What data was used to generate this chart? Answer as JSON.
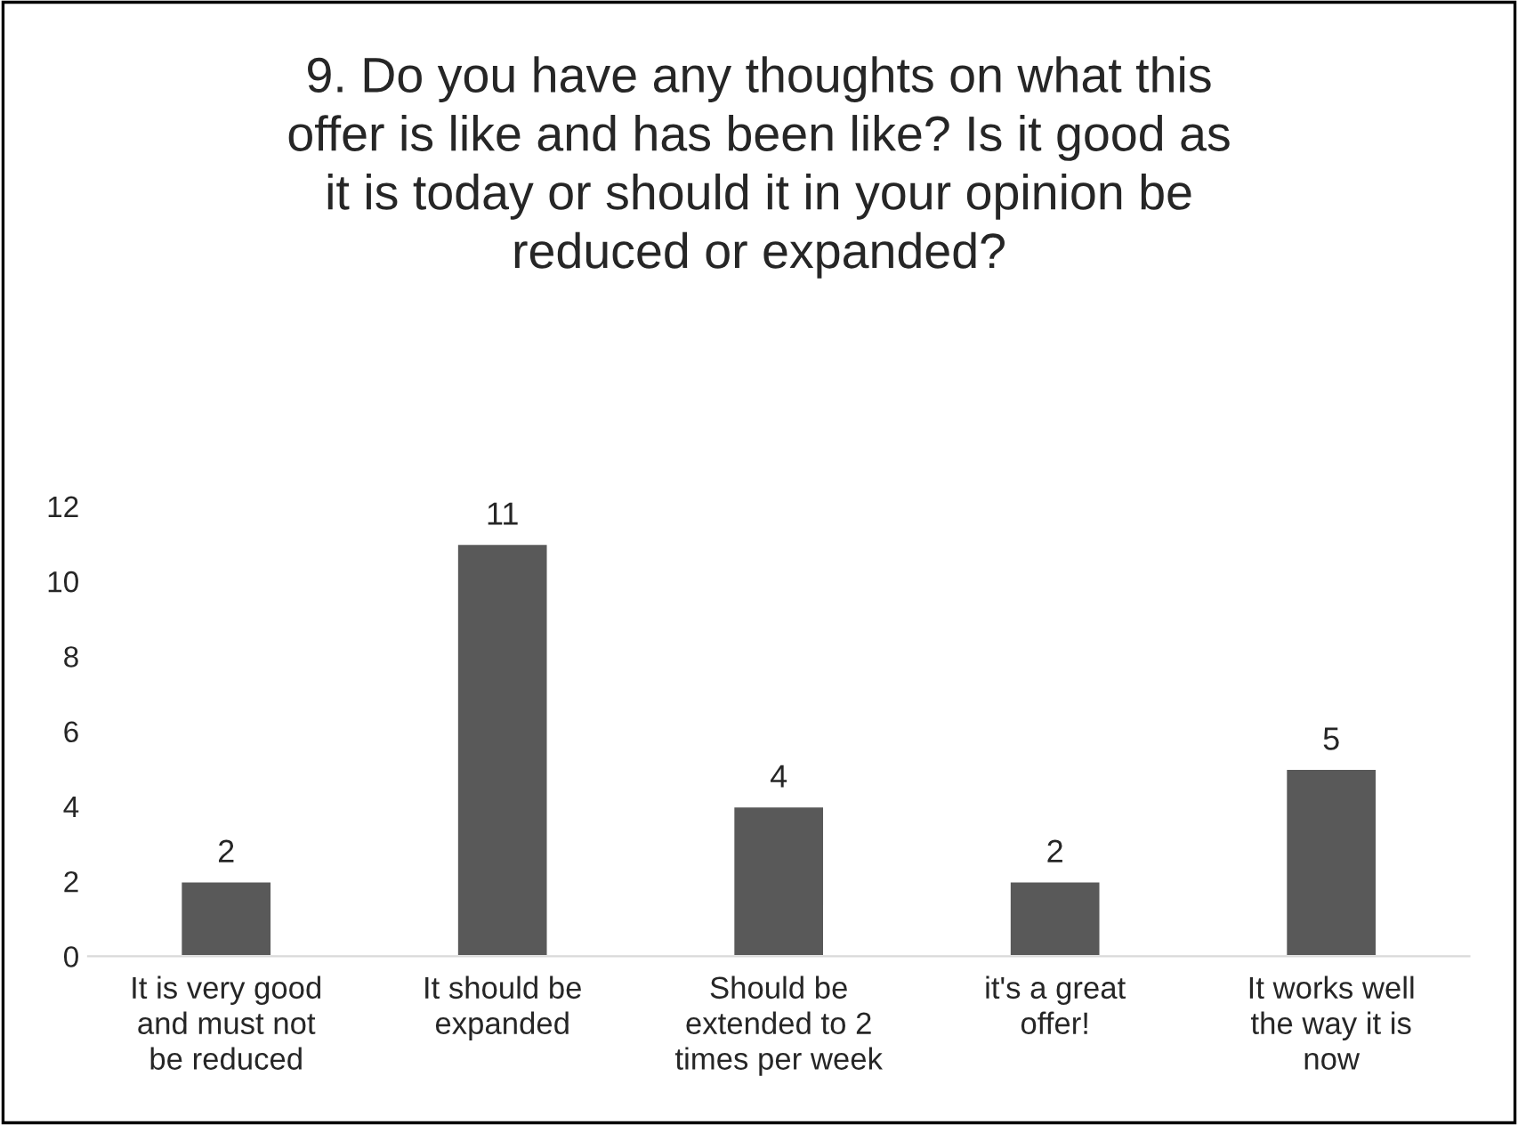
{
  "chart_data": {
    "type": "bar",
    "title": "9. Do you have any thoughts on what this\noffer is like and has been like? Is it good as\nit is today or should it in your opinion be\nreduced or expanded?",
    "categories": [
      "It is very good\nand must not\nbe reduced",
      "It should be\nexpanded",
      "Should be\nextended to 2\ntimes per week",
      "it's a great\noffer!",
      "It works well\nthe way it is\nnow"
    ],
    "values": [
      2,
      11,
      4,
      2,
      5
    ],
    "color": "#595959",
    "ylim": [
      0,
      12
    ],
    "yticks": [
      0,
      2,
      4,
      6,
      8,
      10,
      12
    ],
    "data_labels": true,
    "grid": false,
    "legend": false
  }
}
